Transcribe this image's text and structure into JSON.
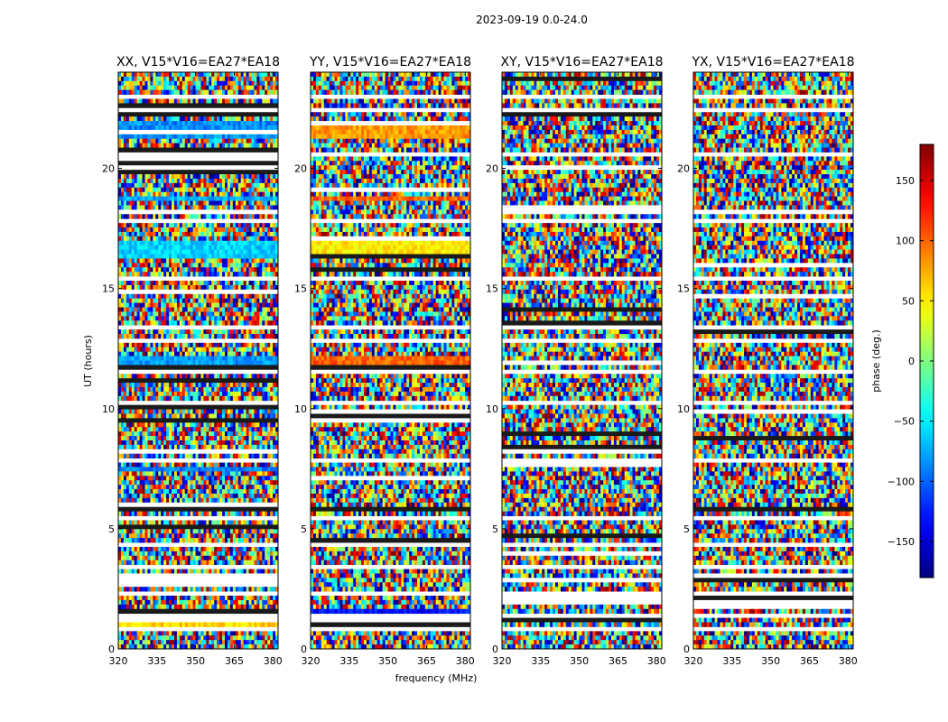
{
  "chart_data": {
    "type": "heatmap",
    "suptitle": "2023-09-19 0.0-24.0",
    "xlabel": "frequency (MHz)",
    "ylabel": "UT (hours)",
    "xlim": [
      320,
      382
    ],
    "ylim": [
      0,
      24
    ],
    "x_ticks": [
      "320",
      "335",
      "350",
      "365",
      "380"
    ],
    "x_tick_values": [
      320,
      335,
      350,
      365,
      380
    ],
    "y_ticks": [
      "0",
      "5",
      "10",
      "15",
      "20"
    ],
    "y_tick_values": [
      0,
      5,
      10,
      15,
      20
    ],
    "colorbar": {
      "label": "phase (deg.)",
      "range": [
        -180,
        180
      ],
      "ticks": [
        "150",
        "100",
        "50",
        "0",
        "−50",
        "−100",
        "−150"
      ],
      "tick_values": [
        150,
        100,
        50,
        0,
        -50,
        -100,
        -150
      ],
      "colormap": "jet"
    },
    "panels": [
      {
        "title": "XX, V15*V16=EA27*EA18",
        "polarization": "XX"
      },
      {
        "title": "YY, V15*V16=EA27*EA18",
        "polarization": "YY"
      },
      {
        "title": "XY, V15*V16=EA27*EA18",
        "polarization": "XY"
      },
      {
        "title": "YX, V15*V16=EA27*EA18",
        "polarization": "YX"
      }
    ],
    "coherent_bands": [
      {
        "panel": "XX",
        "ut_start": 21.3,
        "ut_end": 22.0,
        "phase": -85
      },
      {
        "panel": "XX",
        "ut_start": 18.7,
        "ut_end": 18.9,
        "phase": -75
      },
      {
        "panel": "XX",
        "ut_start": 16.3,
        "ut_end": 16.9,
        "phase": -60
      },
      {
        "panel": "XX",
        "ut_start": 11.8,
        "ut_end": 12.1,
        "phase": -80
      },
      {
        "panel": "XX",
        "ut_start": 7.3,
        "ut_end": 7.5,
        "phase": -90
      },
      {
        "panel": "XX",
        "ut_start": 1.4,
        "ut_end": 1.6,
        "phase": 170
      },
      {
        "panel": "XX",
        "ut_start": 0.95,
        "ut_end": 1.1,
        "phase": 60
      },
      {
        "panel": "YY",
        "ut_start": 21.3,
        "ut_end": 22.0,
        "phase": 80
      },
      {
        "panel": "YY",
        "ut_start": 18.7,
        "ut_end": 18.9,
        "phase": 100
      },
      {
        "panel": "YY",
        "ut_start": 16.3,
        "ut_end": 16.9,
        "phase": 50
      },
      {
        "panel": "YY",
        "ut_start": 11.8,
        "ut_end": 12.1,
        "phase": 100
      },
      {
        "panel": "YY",
        "ut_start": 1.4,
        "ut_end": 1.7,
        "phase": -130
      },
      {
        "panel": "YY",
        "ut_start": 0.95,
        "ut_end": 1.1,
        "phase": 170
      }
    ],
    "flagged_gaps_ut": [
      23.0,
      22.5,
      20.5,
      17.8,
      15.4,
      13.3,
      12.9,
      11.6,
      10.2,
      7.8,
      7.2,
      5.5,
      4.3,
      3.4,
      2.3,
      1.3,
      0.8
    ]
  }
}
